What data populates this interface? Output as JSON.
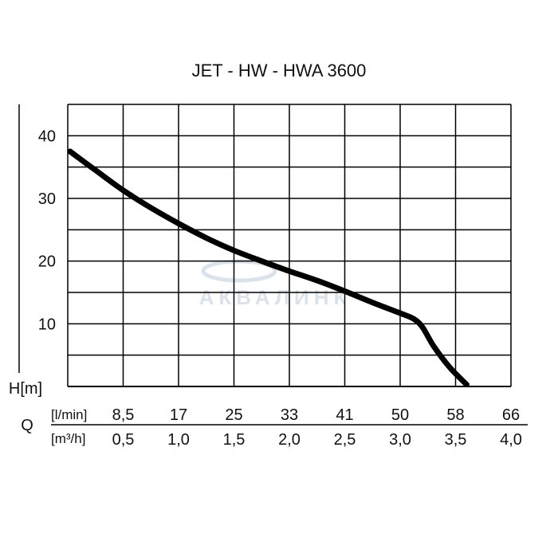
{
  "chart_data": {
    "type": "line",
    "title": "JET - HW - HWA 3600",
    "ylabel": "H[m]",
    "xlabel": "Q",
    "ylim": [
      0,
      45
    ],
    "y_ticks": [
      "10",
      "20",
      "30",
      "40"
    ],
    "xlim": [
      0,
      4.0
    ],
    "x_unit_primary": "[l/min]",
    "x_unit_secondary": "[m³/h]",
    "x_ticks_lmin": [
      "8,5",
      "17",
      "25",
      "33",
      "41",
      "50",
      "58",
      "66"
    ],
    "x_ticks_m3h": [
      "0,5",
      "1,0",
      "1,5",
      "2,0",
      "2,5",
      "3,0",
      "3,5",
      "4,0"
    ],
    "grid": true,
    "line_color": "#000000",
    "series": [
      {
        "x": [
          0.02,
          0.25,
          0.5,
          0.75,
          1.0,
          1.25,
          1.5,
          1.75,
          2.0,
          2.25,
          2.5,
          2.75,
          3.0,
          3.12,
          3.2,
          3.3,
          3.45,
          3.6
        ],
        "values": [
          37.5,
          34.5,
          31.3,
          28.5,
          26.0,
          23.7,
          21.7,
          20.0,
          18.4,
          16.9,
          15.2,
          13.4,
          11.7,
          10.8,
          9.5,
          6.5,
          3.0,
          0.3
        ]
      }
    ]
  },
  "watermark": "АКВАЛИНК"
}
